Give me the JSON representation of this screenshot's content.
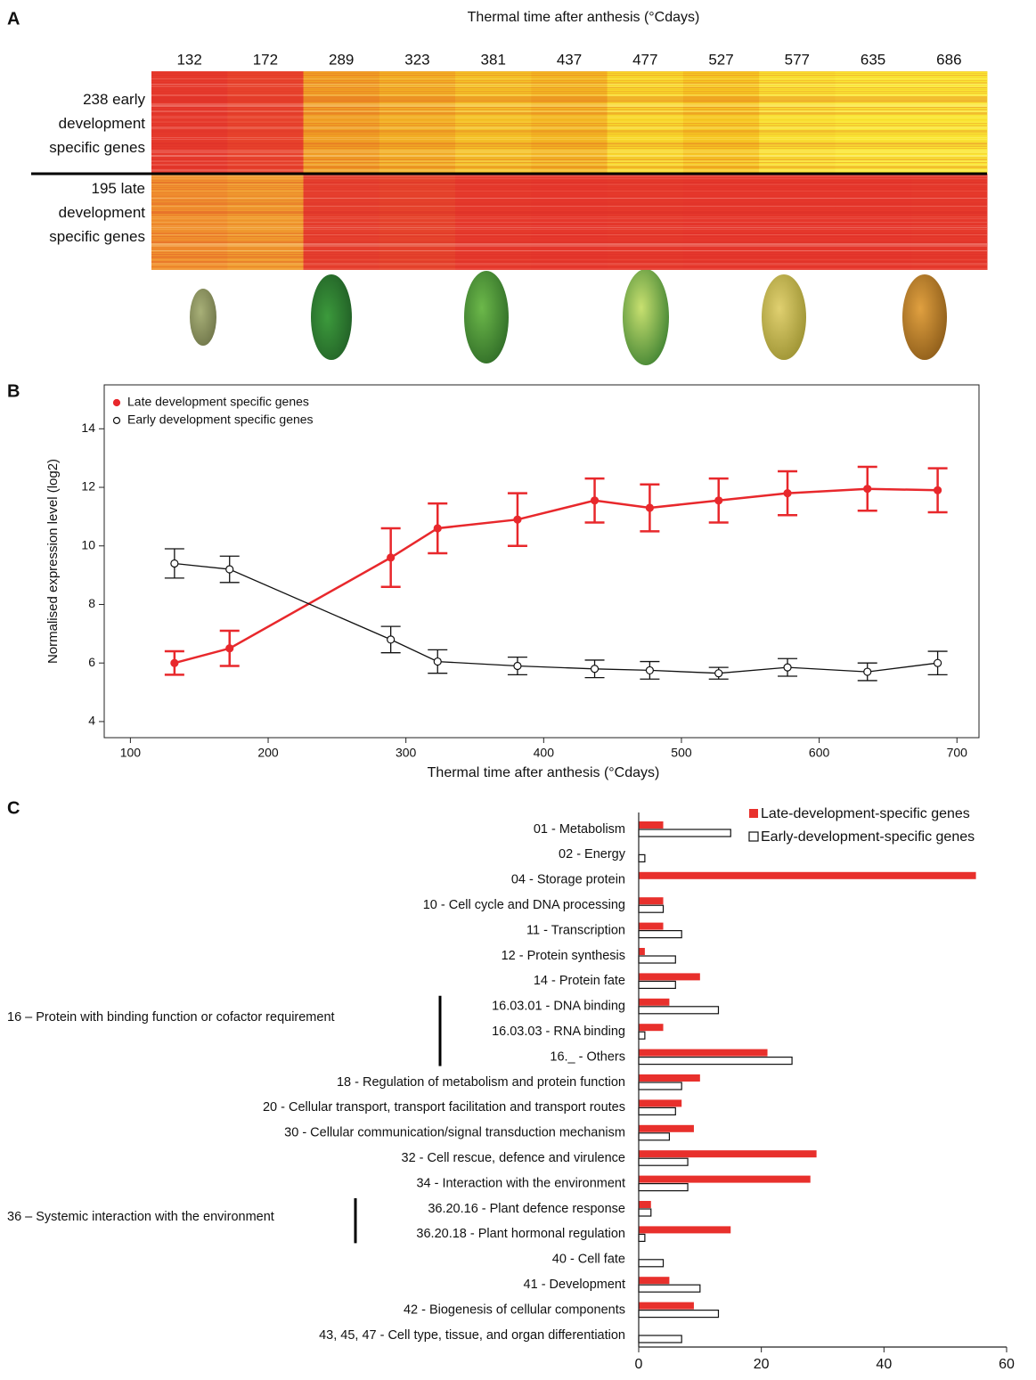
{
  "chart_data": [
    {
      "type": "heatmap",
      "panel": "A",
      "title": "Thermal time after anthesis (°Cdays)",
      "categories": [
        132,
        172,
        289,
        323,
        381,
        437,
        477,
        527,
        577,
        635,
        686
      ],
      "rows": [
        {
          "label": "238 early development specific genes",
          "colors": [
            "#e63a2c",
            "#e8432c",
            "#f0a024",
            "#f2b024",
            "#f4c226",
            "#f3b822",
            "#f8d82a",
            "#f6c822",
            "#f9e030",
            "#fae632",
            "#fae632"
          ]
        },
        {
          "label": "195 late development specific genes",
          "colors": [
            "#f0922e",
            "#f09c2e",
            "#e6402e",
            "#e6442c",
            "#e63a2c",
            "#e6382c",
            "#e63a2c",
            "#e6382c",
            "#e6382c",
            "#e6382c",
            "#e63a2c"
          ]
        }
      ]
    },
    {
      "type": "line",
      "panel": "B",
      "xlabel": "Thermal time after anthesis (°Cdays)",
      "ylabel": "Normalised expression level (log2)",
      "x": [
        132,
        172,
        289,
        323,
        381,
        437,
        477,
        527,
        577,
        635,
        686
      ],
      "xlim": [
        81,
        716
      ],
      "xticks": [
        100,
        200,
        300,
        400,
        500,
        600,
        700
      ],
      "ylim": [
        3.45,
        15.5
      ],
      "yticks": [
        4,
        6,
        8,
        10,
        12,
        14
      ],
      "legend": "upper left",
      "series": [
        {
          "name": "Late development specific genes",
          "color": "#e8282c",
          "marker": "filled",
          "values": [
            6.0,
            6.5,
            9.6,
            10.6,
            10.9,
            11.55,
            11.3,
            11.55,
            11.8,
            11.95,
            11.9
          ],
          "errors": [
            0.4,
            0.6,
            1.0,
            0.85,
            0.9,
            0.75,
            0.8,
            0.75,
            0.75,
            0.75,
            0.75
          ]
        },
        {
          "name": "Early development specific genes",
          "color": "#111111",
          "marker": "open",
          "values": [
            9.4,
            9.2,
            6.8,
            6.05,
            5.9,
            5.8,
            5.75,
            5.65,
            5.85,
            5.7,
            6.0
          ],
          "errors": [
            0.5,
            0.45,
            0.45,
            0.4,
            0.3,
            0.3,
            0.3,
            0.2,
            0.3,
            0.3,
            0.4
          ]
        }
      ]
    },
    {
      "type": "hbar",
      "panel": "C",
      "categories": [
        "01 - Metabolism",
        "02 - Energy",
        "04 - Storage protein",
        "10 - Cell cycle and DNA processing",
        "11 - Transcription",
        "12 - Protein synthesis",
        "14 - Protein fate",
        "16.03.01 - DNA binding",
        "16.03.03 - RNA binding",
        "16._ - Others",
        "18 - Regulation of metabolism and protein function",
        "20 - Cellular transport, transport facilitation and transport routes",
        "30 - Cellular communication/signal transduction mechanism",
        "32 - Cell rescue, defence and virulence",
        "34 - Interaction with the environment",
        "36.20.16 - Plant defence response",
        "36.20.18 - Plant hormonal regulation",
        "40 - Cell fate",
        "41 - Development",
        "42 - Biogenesis of cellular components",
        "43, 45, 47 - Cell type, tissue, and organ differentiation"
      ],
      "groups": [
        {
          "label": "16 – Protein with binding function or cofactor requirement"
        },
        {
          "label": "36 – Systemic interaction with the environment"
        }
      ],
      "xlim": [
        0,
        60
      ],
      "xticks": [
        0,
        20,
        40,
        60
      ],
      "legend": "upper right",
      "series": [
        {
          "name": "Late-development-specific genes",
          "color": "#e8302c",
          "marker": "filled",
          "values": [
            4,
            0,
            55,
            4,
            4,
            1,
            10,
            5,
            4,
            21,
            10,
            7,
            9,
            29,
            28,
            2,
            15,
            0,
            5,
            9,
            0
          ]
        },
        {
          "name": "Early-development-specific genes",
          "color": "#111111",
          "marker": "open",
          "values": [
            15,
            1,
            0,
            4,
            7,
            6,
            6,
            13,
            1,
            25,
            7,
            6,
            5,
            8,
            8,
            2,
            1,
            4,
            10,
            13,
            7
          ]
        }
      ]
    }
  ]
}
